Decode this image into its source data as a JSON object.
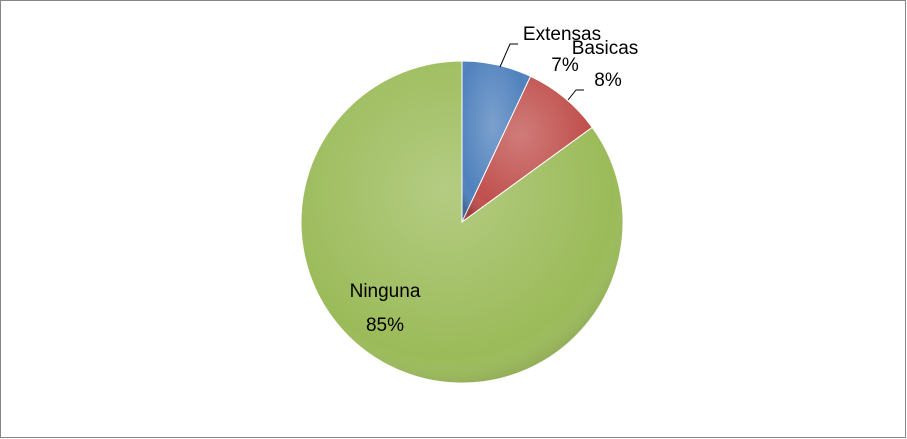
{
  "chart_data": {
    "type": "pie",
    "categories": [
      "Extensas",
      "Basicas",
      "Ninguna"
    ],
    "values": [
      7,
      8,
      85
    ],
    "value_labels": [
      "7%",
      "8%",
      "85%"
    ],
    "colors": [
      "#4f81bd",
      "#c0504d",
      "#9bbb59"
    ]
  }
}
